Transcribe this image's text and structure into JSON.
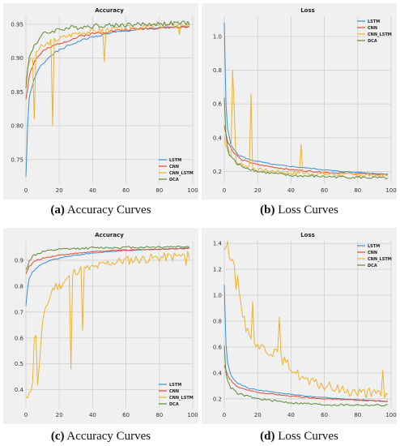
{
  "colors": {
    "LSTM": "#3a8fd3",
    "CNN": "#e24a33",
    "CNN_LSTM": "#f0b22e",
    "DCA": "#5f8a3a",
    "grid": "#cfcfcf",
    "bg": "#f0f0f0"
  },
  "captions": [
    {
      "letter": "(a)",
      "text": " Accuracy Curves"
    },
    {
      "letter": "(b)",
      "text": " Loss Curves"
    },
    {
      "letter": "(c)",
      "text": " Accuracy Curves"
    },
    {
      "letter": "(d)",
      "text": " Loss Curves"
    }
  ],
  "chart_data": [
    {
      "type": "line",
      "title": "Accuracy",
      "xlim": [
        0,
        100
      ],
      "ylim": [
        0.715,
        0.962
      ],
      "xticks": [
        "0",
        "20",
        "40",
        "60",
        "80",
        "100"
      ],
      "yticks": [
        "0.75",
        "0.80",
        "0.85",
        "0.90",
        "0.95"
      ],
      "ytick_values": [
        0.75,
        0.8,
        0.85,
        0.9,
        0.95
      ],
      "legend": "bottom-right",
      "grid": true,
      "series": [
        {
          "name": "LSTM",
          "color": "#3a8fd3",
          "anchors": [
            [
              0,
              0.725
            ],
            [
              1,
              0.8
            ],
            [
              2,
              0.84
            ],
            [
              4,
              0.862
            ],
            [
              8,
              0.885
            ],
            [
              15,
              0.905
            ],
            [
              25,
              0.918
            ],
            [
              35,
              0.928
            ],
            [
              50,
              0.937
            ],
            [
              70,
              0.943
            ],
            [
              98,
              0.947
            ]
          ],
          "noise": 0.0015,
          "seed": 1
        },
        {
          "name": "CNN",
          "color": "#e24a33",
          "anchors": [
            [
              0,
              0.84
            ],
            [
              2,
              0.875
            ],
            [
              5,
              0.895
            ],
            [
              10,
              0.91
            ],
            [
              20,
              0.922
            ],
            [
              35,
              0.934
            ],
            [
              50,
              0.94
            ],
            [
              70,
              0.944
            ],
            [
              98,
              0.946
            ]
          ],
          "noise": 0.002,
          "seed": 2
        },
        {
          "name": "CNN_LSTM",
          "color": "#f0b22e",
          "anchors": [
            [
              0,
              0.865
            ],
            [
              2,
              0.895
            ],
            [
              6,
              0.91
            ],
            [
              15,
              0.925
            ],
            [
              30,
              0.937
            ],
            [
              50,
              0.943
            ],
            [
              98,
              0.95
            ]
          ],
          "noise": 0.004,
          "spikes": [
            [
              5,
              0.81
            ],
            [
              16,
              0.8
            ],
            [
              47,
              0.895
            ],
            [
              92,
              0.935
            ]
          ],
          "seed": 3
        },
        {
          "name": "DCA",
          "color": "#5f8a3a",
          "anchors": [
            [
              0,
              0.86
            ],
            [
              2,
              0.9
            ],
            [
              5,
              0.92
            ],
            [
              10,
              0.935
            ],
            [
              20,
              0.943
            ],
            [
              40,
              0.948
            ],
            [
              98,
              0.952
            ]
          ],
          "noise": 0.0035,
          "seed": 4
        }
      ]
    },
    {
      "type": "line",
      "title": "Loss",
      "xlim": [
        0,
        100
      ],
      "ylim": [
        0.13,
        1.12
      ],
      "xticks": [
        "0",
        "20",
        "40",
        "60",
        "80",
        "100"
      ],
      "yticks": [
        "0.2",
        "0.4",
        "0.6",
        "0.8",
        "1.0"
      ],
      "ytick_values": [
        0.2,
        0.4,
        0.6,
        0.8,
        1.0
      ],
      "legend": "top-right",
      "grid": true,
      "series": [
        {
          "name": "LSTM",
          "color": "#3a8fd3",
          "anchors": [
            [
              0,
              1.08
            ],
            [
              1,
              0.6
            ],
            [
              2,
              0.45
            ],
            [
              4,
              0.36
            ],
            [
              8,
              0.3
            ],
            [
              15,
              0.27
            ],
            [
              30,
              0.24
            ],
            [
              50,
              0.22
            ],
            [
              70,
              0.2
            ],
            [
              98,
              0.185
            ]
          ],
          "noise": 0.003,
          "seed": 5
        },
        {
          "name": "CNN",
          "color": "#e24a33",
          "anchors": [
            [
              0,
              0.47
            ],
            [
              2,
              0.38
            ],
            [
              5,
              0.32
            ],
            [
              10,
              0.27
            ],
            [
              20,
              0.24
            ],
            [
              40,
              0.21
            ],
            [
              60,
              0.195
            ],
            [
              98,
              0.18
            ]
          ],
          "noise": 0.004,
          "seed": 6
        },
        {
          "name": "CNN_LSTM",
          "color": "#f0b22e",
          "anchors": [
            [
              0,
              0.4
            ],
            [
              3,
              0.3
            ],
            [
              8,
              0.25
            ],
            [
              20,
              0.21
            ],
            [
              40,
              0.19
            ],
            [
              98,
              0.175
            ]
          ],
          "noise": 0.012,
          "spikes": [
            [
              5,
              0.8
            ],
            [
              16,
              0.66
            ],
            [
              46,
              0.36
            ],
            [
              6,
              0.55
            ]
          ],
          "seed": 7
        },
        {
          "name": "DCA",
          "color": "#5f8a3a",
          "anchors": [
            [
              0,
              0.64
            ],
            [
              1,
              0.4
            ],
            [
              3,
              0.3
            ],
            [
              8,
              0.24
            ],
            [
              20,
              0.2
            ],
            [
              40,
              0.175
            ],
            [
              98,
              0.16
            ]
          ],
          "noise": 0.008,
          "seed": 8
        }
      ]
    },
    {
      "type": "line",
      "title": "Accuracy",
      "xlim": [
        0,
        100
      ],
      "ylim": [
        0.33,
        0.975
      ],
      "xticks": [
        "0",
        "20",
        "40",
        "60",
        "80",
        "100"
      ],
      "yticks": [
        "0.4",
        "0.5",
        "0.6",
        "0.7",
        "0.8",
        "0.9"
      ],
      "ytick_values": [
        0.4,
        0.5,
        0.6,
        0.7,
        0.8,
        0.9
      ],
      "legend": "bottom-right",
      "grid": true,
      "series": [
        {
          "name": "LSTM",
          "color": "#3a8fd3",
          "anchors": [
            [
              0,
              0.725
            ],
            [
              1,
              0.79
            ],
            [
              2,
              0.83
            ],
            [
              4,
              0.855
            ],
            [
              8,
              0.88
            ],
            [
              15,
              0.9
            ],
            [
              25,
              0.915
            ],
            [
              40,
              0.928
            ],
            [
              60,
              0.938
            ],
            [
              98,
              0.947
            ]
          ],
          "noise": 0.0015,
          "seed": 9
        },
        {
          "name": "CNN",
          "color": "#e24a33",
          "anchors": [
            [
              0,
              0.85
            ],
            [
              2,
              0.875
            ],
            [
              5,
              0.895
            ],
            [
              10,
              0.908
            ],
            [
              20,
              0.92
            ],
            [
              40,
              0.933
            ],
            [
              60,
              0.94
            ],
            [
              98,
              0.946
            ]
          ],
          "noise": 0.002,
          "seed": 10
        },
        {
          "name": "CNN_LSTM",
          "color": "#f0b22e",
          "anchors": [
            [
              0,
              0.35
            ],
            [
              2,
              0.41
            ],
            [
              4,
              0.41
            ],
            [
              6,
              0.62
            ],
            [
              8,
              0.5
            ],
            [
              10,
              0.65
            ],
            [
              12,
              0.72
            ],
            [
              14,
              0.75
            ],
            [
              16,
              0.79
            ],
            [
              18,
              0.8
            ],
            [
              20,
              0.8
            ],
            [
              25,
              0.83
            ],
            [
              30,
              0.86
            ],
            [
              40,
              0.87
            ],
            [
              50,
              0.89
            ],
            [
              60,
              0.9
            ],
            [
              80,
              0.91
            ],
            [
              98,
              0.92
            ]
          ],
          "noise": 0.018,
          "spikes": [
            [
              5,
              0.6
            ],
            [
              7,
              0.42
            ],
            [
              27,
              0.48
            ],
            [
              34,
              0.63
            ],
            [
              96,
              0.88
            ]
          ],
          "seed": 11
        },
        {
          "name": "DCA",
          "color": "#5f8a3a",
          "anchors": [
            [
              0,
              0.86
            ],
            [
              2,
              0.9
            ],
            [
              5,
              0.92
            ],
            [
              10,
              0.933
            ],
            [
              20,
              0.942
            ],
            [
              40,
              0.948
            ],
            [
              98,
              0.953
            ]
          ],
          "noise": 0.004,
          "seed": 12
        }
      ]
    },
    {
      "type": "line",
      "title": "Loss",
      "xlim": [
        0,
        100
      ],
      "ylim": [
        0.13,
        1.42
      ],
      "xticks": [
        "0",
        "20",
        "40",
        "60",
        "80",
        "100"
      ],
      "yticks": [
        "0.2",
        "0.4",
        "0.6",
        "0.8",
        "1.0",
        "1.2",
        "1.4"
      ],
      "ytick_values": [
        0.2,
        0.4,
        0.6,
        0.8,
        1.0,
        1.2,
        1.4
      ],
      "legend": "top-right",
      "grid": true,
      "series": [
        {
          "name": "LSTM",
          "color": "#3a8fd3",
          "anchors": [
            [
              0,
              1.08
            ],
            [
              1,
              0.62
            ],
            [
              2,
              0.48
            ],
            [
              4,
              0.38
            ],
            [
              8,
              0.32
            ],
            [
              15,
              0.28
            ],
            [
              30,
              0.25
            ],
            [
              50,
              0.22
            ],
            [
              70,
              0.2
            ],
            [
              98,
              0.18
            ]
          ],
          "noise": 0.003,
          "seed": 13
        },
        {
          "name": "CNN",
          "color": "#e24a33",
          "anchors": [
            [
              0,
              0.46
            ],
            [
              2,
              0.38
            ],
            [
              5,
              0.32
            ],
            [
              10,
              0.28
            ],
            [
              20,
              0.25
            ],
            [
              40,
              0.22
            ],
            [
              60,
              0.2
            ],
            [
              98,
              0.18
            ]
          ],
          "noise": 0.004,
          "seed": 14
        },
        {
          "name": "CNN_LSTM",
          "color": "#f0b22e",
          "anchors": [
            [
              0,
              1.38
            ],
            [
              3,
              1.35
            ],
            [
              5,
              1.3
            ],
            [
              7,
              1.1
            ],
            [
              10,
              0.9
            ],
            [
              13,
              0.75
            ],
            [
              16,
              0.7
            ],
            [
              20,
              0.62
            ],
            [
              25,
              0.58
            ],
            [
              30,
              0.56
            ],
            [
              35,
              0.5
            ],
            [
              40,
              0.44
            ],
            [
              45,
              0.38
            ],
            [
              50,
              0.33
            ],
            [
              60,
              0.3
            ],
            [
              70,
              0.27
            ],
            [
              80,
              0.25
            ],
            [
              90,
              0.24
            ],
            [
              98,
              0.22
            ]
          ],
          "noise": 0.04,
          "spikes": [
            [
              8,
              1.15
            ],
            [
              17,
              0.95
            ],
            [
              33,
              0.83
            ],
            [
              95,
              0.42
            ],
            [
              97,
              0.24
            ]
          ],
          "seed": 15
        },
        {
          "name": "DCA",
          "color": "#5f8a3a",
          "anchors": [
            [
              0,
              0.62
            ],
            [
              1,
              0.4
            ],
            [
              3,
              0.3
            ],
            [
              8,
              0.24
            ],
            [
              20,
              0.2
            ],
            [
              40,
              0.17
            ],
            [
              60,
              0.155
            ],
            [
              98,
              0.15
            ]
          ],
          "noise": 0.008,
          "seed": 16
        }
      ]
    }
  ]
}
